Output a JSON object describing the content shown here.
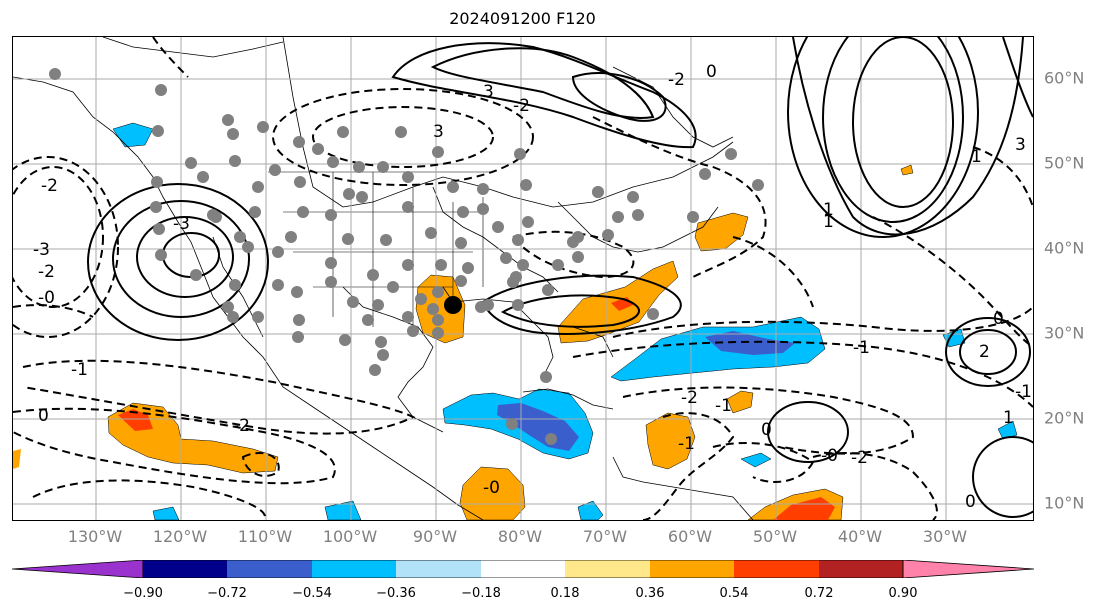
{
  "title": "2024091200 F120",
  "lon_labels": [
    "130°W",
    "120°W",
    "110°W",
    "100°W",
    "90°W",
    "80°W",
    "70°W",
    "60°W",
    "50°W",
    "40°W",
    "30°W"
  ],
  "lat_labels": [
    "60°N",
    "50°N",
    "40°N",
    "30°N",
    "20°N",
    "10°N"
  ],
  "colorbar": {
    "ticks": [
      "−0.90",
      "−0.72",
      "−0.54",
      "−0.36",
      "−0.18",
      "0.18",
      "0.36",
      "0.54",
      "0.72",
      "0.90"
    ],
    "colors": [
      "#9a32cd",
      "#00008b",
      "#3a5fcd",
      "#00bfff",
      "#b2e2f7",
      "#ffffff",
      "#ffe88a",
      "#ffa500",
      "#ff3e00",
      "#b22222",
      "#ff82ab"
    ]
  },
  "contour_labels": [
    "-3",
    "-2",
    "-0",
    "-2",
    "-1",
    "0",
    "-2",
    "-3",
    "3",
    "-2",
    "3",
    "1",
    "0",
    "-2",
    "1",
    "3",
    "-1",
    "0",
    "-1",
    "-2",
    "-0",
    "2",
    "1",
    "-0",
    "-1",
    "0",
    "1",
    "-1",
    "-2",
    "0"
  ],
  "marker": "black-dot"
}
